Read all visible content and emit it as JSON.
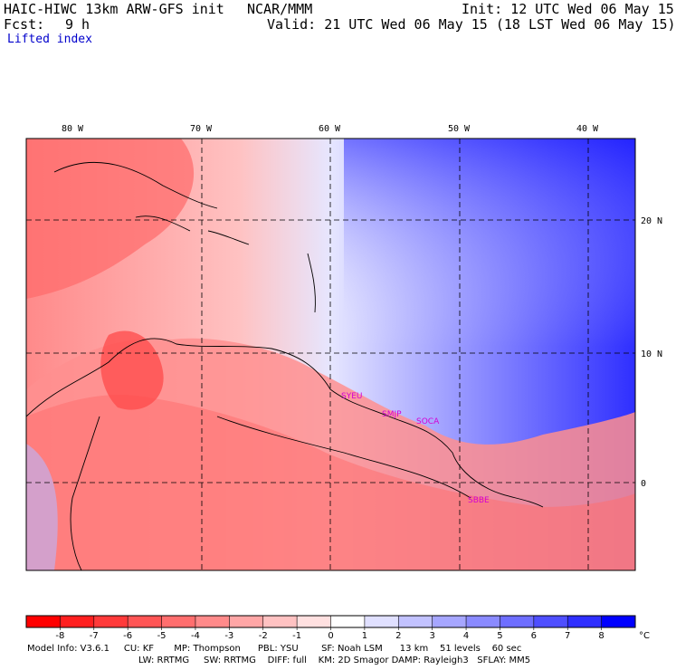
{
  "header": {
    "model": "HAIC-HIWC 13km ARW-GFS init",
    "org": "NCAR/MMM",
    "init": "Init: 12 UTC Wed 06 May 15",
    "fcst_label": "Fcst:",
    "fcst_value": "9 h",
    "valid": "Valid: 21 UTC Wed 06 May 15 (18 LST Wed 06 May 15)",
    "field": "Lifted index"
  },
  "map": {
    "lon_labels": [
      "80 W",
      "70 W",
      "60 W",
      "50 W",
      "40 W"
    ],
    "lat_labels": [
      "20 N",
      "10 N",
      "0"
    ],
    "stations": [
      "SYEU",
      "SMJP",
      "SOCA",
      "SBBE"
    ]
  },
  "colorbar": {
    "ticks": [
      "-8",
      "-7",
      "-6",
      "-5",
      "-4",
      "-3",
      "-2",
      "-1",
      "0",
      "1",
      "2",
      "3",
      "4",
      "5",
      "6",
      "7",
      "8"
    ],
    "unit": "°C",
    "colors": [
      "#ff0000",
      "#ff1f1f",
      "#ff3a3a",
      "#ff5555",
      "#ff6e6e",
      "#ff8a8a",
      "#ffa6a6",
      "#ffc2c2",
      "#ffe0e0",
      "#ffffff",
      "#e0e0ff",
      "#c2c2ff",
      "#a6a6ff",
      "#8a8aff",
      "#6e6eff",
      "#4f4fff",
      "#2f2fff",
      "#0000ff"
    ]
  },
  "footer": {
    "line1": "Model Info: V3.6.1     CU: KF       MP: Thompson      PBL: YSU        SF: Noah LSM      13 km    51 levels    60 sec",
    "line2": "LW: RRTMG     SW: RRTMG    DIFF: full    KM: 2D Smagor DAMP: Rayleigh3   SFLAY: MM5"
  }
}
